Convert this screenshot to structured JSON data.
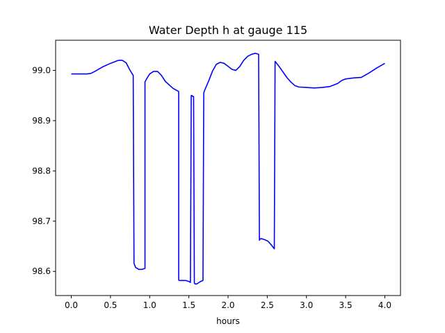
{
  "chart_data": {
    "type": "line",
    "title": "Water Depth h at gauge 115",
    "xlabel": "hours",
    "ylabel": "",
    "xlim": [
      -0.2,
      4.2
    ],
    "ylim": [
      98.552,
      99.06
    ],
    "xticks": [
      0.0,
      0.5,
      1.0,
      1.5,
      2.0,
      2.5,
      3.0,
      3.5,
      4.0
    ],
    "xtick_labels": [
      "0.0",
      "0.5",
      "1.0",
      "1.5",
      "2.0",
      "2.5",
      "3.0",
      "3.5",
      "4.0"
    ],
    "yticks": [
      98.6,
      98.7,
      98.8,
      98.9,
      99.0
    ],
    "ytick_labels": [
      "98.6",
      "98.7",
      "98.8",
      "98.9",
      "99.0"
    ],
    "grid": false,
    "series": [
      {
        "color": "#0000ff",
        "x": [
          0.0,
          0.1,
          0.2,
          0.25,
          0.3,
          0.4,
          0.5,
          0.6,
          0.65,
          0.7,
          0.75,
          0.79,
          0.8,
          0.82,
          0.86,
          0.9,
          0.94,
          0.94,
          0.96,
          1.0,
          1.05,
          1.1,
          1.15,
          1.2,
          1.3,
          1.37,
          1.37,
          1.38,
          1.42,
          1.46,
          1.5,
          1.52,
          1.53,
          1.54,
          1.55,
          1.56,
          1.57,
          1.58,
          1.6,
          1.62,
          1.65,
          1.68,
          1.69,
          1.7,
          1.75,
          1.8,
          1.85,
          1.9,
          1.95,
          2.0,
          2.05,
          2.1,
          2.15,
          2.2,
          2.25,
          2.3,
          2.35,
          2.39,
          2.4,
          2.41,
          2.43,
          2.47,
          2.51,
          2.55,
          2.59,
          2.6,
          2.65,
          2.7,
          2.75,
          2.8,
          2.85,
          2.9,
          3.0,
          3.1,
          3.2,
          3.3,
          3.4,
          3.45,
          3.5,
          3.6,
          3.7,
          3.8,
          3.9,
          4.0
        ],
        "y": [
          98.993,
          98.993,
          98.993,
          98.994,
          98.998,
          99.007,
          99.014,
          99.02,
          99.02,
          99.015,
          99.0,
          98.99,
          98.616,
          98.608,
          98.604,
          98.604,
          98.606,
          98.977,
          98.983,
          98.993,
          98.998,
          98.998,
          98.99,
          98.978,
          98.964,
          98.958,
          98.583,
          98.582,
          98.582,
          98.582,
          98.58,
          98.578,
          98.95,
          98.95,
          98.948,
          98.948,
          98.577,
          98.575,
          98.575,
          98.577,
          98.58,
          98.582,
          98.955,
          98.96,
          98.978,
          98.998,
          99.012,
          99.016,
          99.014,
          99.008,
          99.002,
          99.0,
          99.008,
          99.02,
          99.028,
          99.032,
          99.034,
          99.032,
          98.662,
          98.665,
          98.665,
          98.663,
          98.66,
          98.653,
          98.645,
          99.018,
          99.008,
          98.997,
          98.986,
          98.977,
          98.97,
          98.967,
          98.966,
          98.965,
          98.966,
          98.968,
          98.974,
          98.98,
          98.983,
          98.985,
          98.986,
          98.995,
          99.005,
          99.014
        ]
      }
    ]
  }
}
